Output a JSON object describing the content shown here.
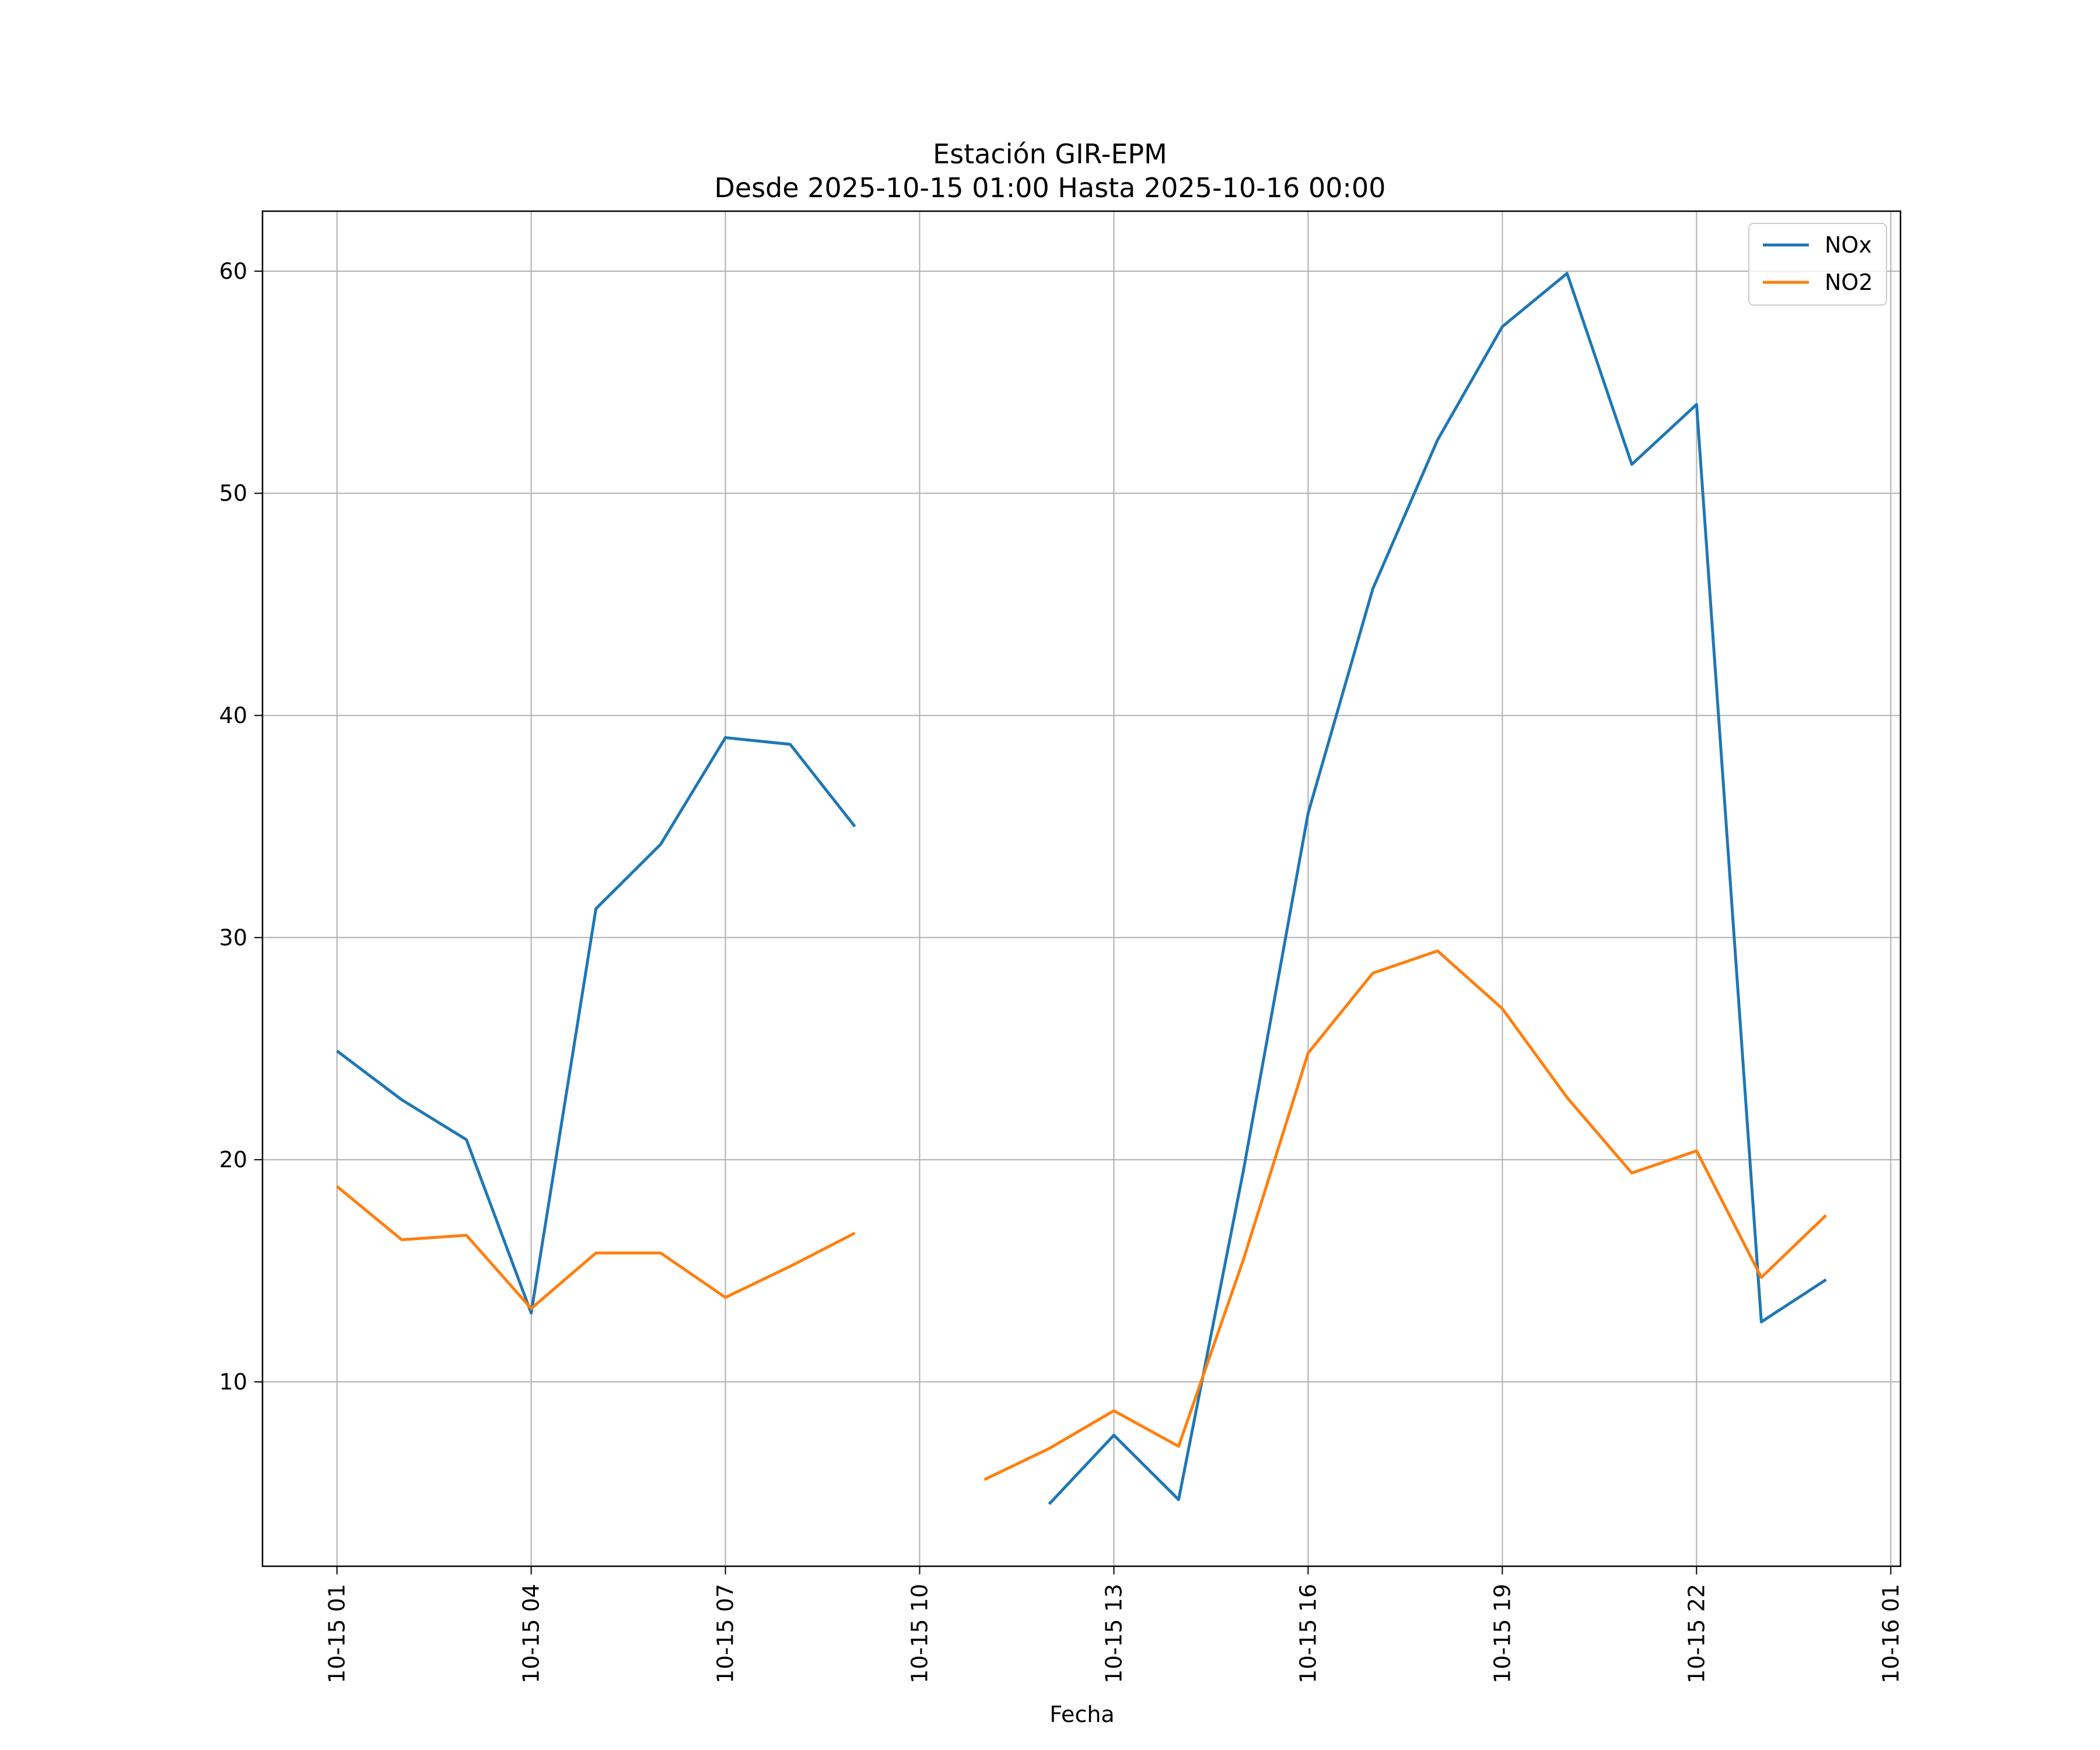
{
  "chart_data": {
    "type": "line",
    "title": "Estación GIR-EPM",
    "subtitle": "Desde 2025-10-15 01:00 Hasta 2025-10-16 00:00",
    "xlabel": "Fecha",
    "ylabel": "",
    "grid": true,
    "legend_position": "top-right",
    "x_tick_labels": [
      "10-15 01",
      "10-15 04",
      "10-15 07",
      "10-15 10",
      "10-15 13",
      "10-15 16",
      "10-15 19",
      "10-15 22",
      "10-16 01"
    ],
    "x_tick_hours": [
      1,
      4,
      7,
      10,
      13,
      16,
      19,
      22,
      25
    ],
    "xlim_hours": [
      -0.15,
      25.15
    ],
    "y_ticks": [
      10,
      20,
      30,
      40,
      50,
      60
    ],
    "ylim": [
      1.7,
      62.7
    ],
    "x": [
      "2025-10-15 01:00",
      "2025-10-15 02:00",
      "2025-10-15 03:00",
      "2025-10-15 04:00",
      "2025-10-15 05:00",
      "2025-10-15 06:00",
      "2025-10-15 07:00",
      "2025-10-15 08:00",
      "2025-10-15 09:00",
      "2025-10-15 10:00",
      "2025-10-15 11:00",
      "2025-10-15 12:00",
      "2025-10-15 13:00",
      "2025-10-15 14:00",
      "2025-10-15 15:00",
      "2025-10-15 16:00",
      "2025-10-15 17:00",
      "2025-10-15 18:00",
      "2025-10-15 19:00",
      "2025-10-15 20:00",
      "2025-10-15 21:00",
      "2025-10-15 22:00",
      "2025-10-15 23:00",
      "2025-10-16 00:00"
    ],
    "series": [
      {
        "name": "NOx",
        "color": "#1f77b4",
        "values": [
          24.9,
          22.7,
          20.9,
          13.1,
          31.3,
          34.2,
          39.0,
          38.7,
          35.0,
          null,
          null,
          4.5,
          7.6,
          4.7,
          19.5,
          35.6,
          45.7,
          52.4,
          57.5,
          59.9,
          51.3,
          54.0,
          12.7,
          14.6
        ]
      },
      {
        "name": "NO2",
        "color": "#ff7f0e",
        "values": [
          18.8,
          16.4,
          16.6,
          13.3,
          15.8,
          15.8,
          13.8,
          15.2,
          16.7,
          null,
          5.6,
          7.0,
          8.7,
          7.1,
          15.5,
          24.8,
          28.4,
          29.4,
          26.8,
          22.8,
          19.4,
          20.4,
          14.7,
          17.5
        ]
      }
    ]
  }
}
